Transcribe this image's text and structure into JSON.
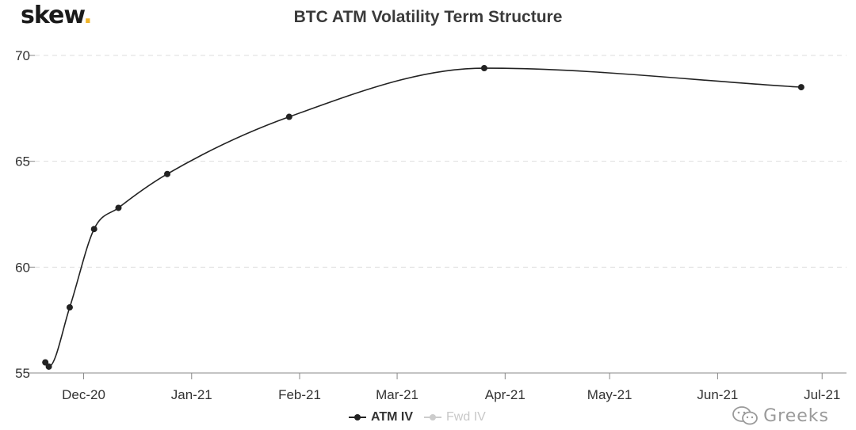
{
  "brand": {
    "name": "skew",
    "dot": "."
  },
  "watermark": {
    "text": "Greeks",
    "icon": "wechat-icon"
  },
  "chart_data": {
    "type": "line",
    "title": "BTC ATM Volatility Term Structure",
    "xlabel": "",
    "ylabel": "",
    "ylim": [
      55,
      70
    ],
    "yticks": [
      55,
      60,
      65,
      70
    ],
    "grid": true,
    "xtick_labels": [
      "Dec-20",
      "Jan-21",
      "Feb-21",
      "Mar-21",
      "Apr-21",
      "May-21",
      "Jun-21",
      "Jul-21"
    ],
    "xticks": [
      "2020-12-01",
      "2021-01-01",
      "2021-02-01",
      "2021-03-01",
      "2021-04-01",
      "2021-05-01",
      "2021-06-01",
      "2021-07-01"
    ],
    "xlim": [
      "2020-11-17",
      "2021-07-08"
    ],
    "legend_position": "bottom-center",
    "series": [
      {
        "name": "ATM IV",
        "color": "#222222",
        "visible": true,
        "points": [
          {
            "x": "2020-11-20",
            "y": 55.5
          },
          {
            "x": "2020-11-21",
            "y": 55.3
          },
          {
            "x": "2020-11-27",
            "y": 58.1
          },
          {
            "x": "2020-12-04",
            "y": 61.8
          },
          {
            "x": "2020-12-11",
            "y": 62.8
          },
          {
            "x": "2020-12-25",
            "y": 64.4
          },
          {
            "x": "2021-01-29",
            "y": 67.1
          },
          {
            "x": "2021-03-26",
            "y": 69.4
          },
          {
            "x": "2021-06-25",
            "y": 68.5
          }
        ]
      },
      {
        "name": "Fwd IV",
        "color": "#cccccc",
        "visible": false,
        "points": []
      }
    ]
  }
}
